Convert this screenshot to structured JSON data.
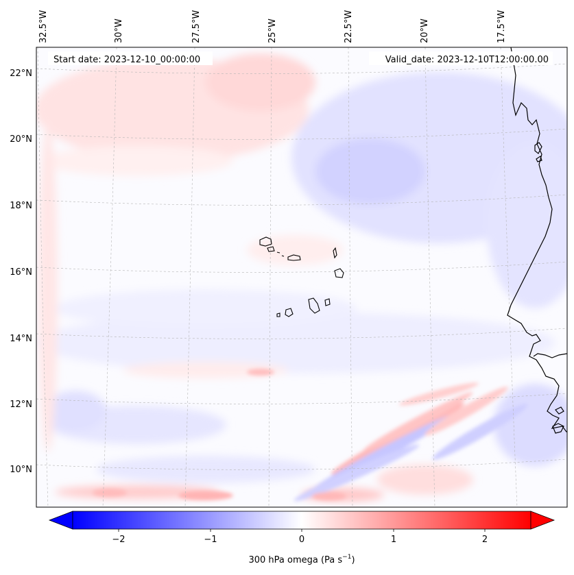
{
  "annotations": {
    "start_date": "Start date: 2023-12-10_00:00:00",
    "valid_date": "Valid_date: 2023-12-10T12:00:00.00"
  },
  "lon_labels": [
    "32.5°W",
    "30°W",
    "27.5°W",
    "25°W",
    "22.5°W",
    "20°W",
    "17.5°W"
  ],
  "lat_labels": [
    "22°N",
    "20°N",
    "18°N",
    "16°N",
    "14°N",
    "12°N",
    "10°N"
  ],
  "colorbar": {
    "ticks": [
      "−2",
      "−1",
      "0",
      "1",
      "2"
    ],
    "label_main": "300 hPa omega (Pa s",
    "label_sup": "−1",
    "label_end": ")",
    "colormap": "bwr",
    "min_color": "#0000ff",
    "mid_color": "#ffffff",
    "max_color": "#ff0000"
  },
  "chart_data": {
    "type": "heatmap",
    "variable": "300 hPa omega",
    "units": "Pa s^-1",
    "projection": "Lambert conformal",
    "lon_range": [
      -33,
      -15
    ],
    "lat_range": [
      8.8,
      22.6
    ],
    "color_range": [
      -2.5,
      2.5
    ],
    "colorbar_ticks": [
      -2,
      -1,
      0,
      1,
      2
    ],
    "colorbar_extend": "both",
    "gridlines": true,
    "coastlines": true
  }
}
